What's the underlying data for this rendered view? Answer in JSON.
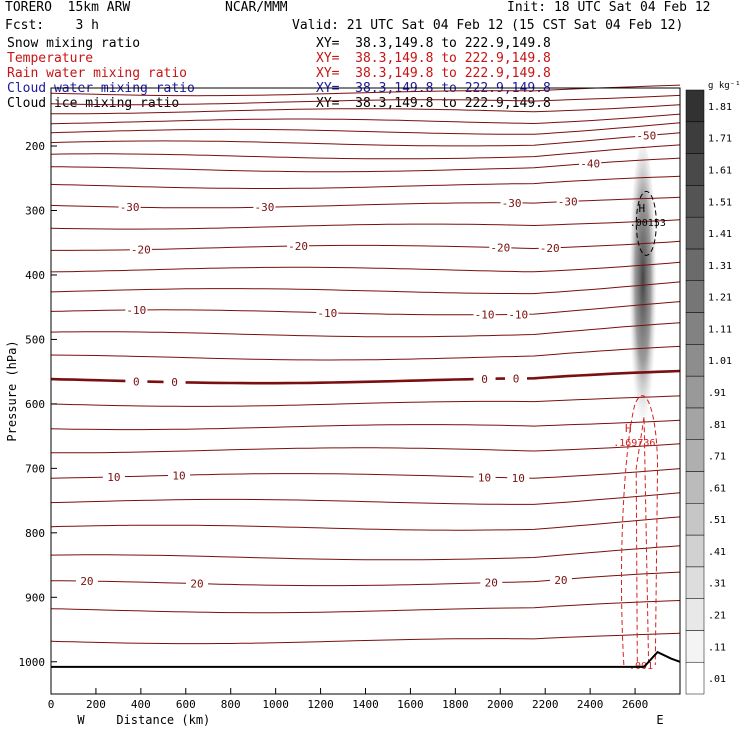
{
  "header": {
    "model": "TORERO  15km ARW",
    "center": "NCAR/MMM",
    "init": "Init: 18 UTC Sat 04 Feb 12",
    "fcst": "Fcst:    3 h",
    "valid": "Valid: 21 UTC Sat 04 Feb 12 (15 CST Sat 04 Feb 12)"
  },
  "fields": [
    {
      "name": "Snow mixing ratio",
      "xy": "XY=  38.3,149.8 to 222.9,149.8",
      "color": "#000000"
    },
    {
      "name": "Temperature",
      "xy": "XY=  38.3,149.8 to 222.9,149.8",
      "color": "#c81414"
    },
    {
      "name": "Rain water mixing ratio",
      "xy": "XY=  38.3,149.8 to 222.9,149.8",
      "color": "#c81414"
    },
    {
      "name": "Cloud water mixing ratio",
      "xy": "XY=  38.3,149.8 to 222.9,149.8",
      "color": "#1a1aa0"
    },
    {
      "name": "Cloud ice mixing ratio",
      "xy": "XY=  38.3,149.8 to 222.9,149.8",
      "color": "#000000"
    }
  ],
  "chart_data": {
    "type": "contour-cross-section",
    "xlabel": "Distance (km)",
    "ylabel": "Pressure (hPa)",
    "xlim": [
      0,
      2800
    ],
    "ylim": [
      1050,
      110
    ],
    "x_ticks": [
      0,
      200,
      400,
      600,
      800,
      1000,
      1200,
      1400,
      1600,
      1800,
      2000,
      2200,
      2400,
      2600
    ],
    "y_ticks": [
      200,
      300,
      400,
      500,
      600,
      700,
      800,
      900,
      1000
    ],
    "x_end_labels": {
      "left": "W",
      "right": "E"
    },
    "temperature_contours": [
      {
        "level": -50,
        "labels": [
          2650
        ]
      },
      {
        "level": -40,
        "labels": [
          2400
        ]
      },
      {
        "level": -30,
        "labels": [
          350,
          950,
          2050,
          2300
        ]
      },
      {
        "level": -20,
        "labels": [
          400,
          1100,
          2000,
          2220
        ]
      },
      {
        "level": -10,
        "labels": [
          380,
          1230,
          1930,
          2080
        ]
      },
      {
        "level": 0,
        "labels": [
          380,
          550,
          1930,
          2070
        ]
      },
      {
        "level": 10,
        "labels": [
          280,
          570,
          1930,
          2080
        ]
      },
      {
        "level": 20,
        "labels": [
          160,
          650,
          1960,
          2270
        ]
      }
    ],
    "maxima": [
      {
        "field": "Snow mixing ratio",
        "marker": "H",
        "x": 2630,
        "p": 315,
        "value": ".00153"
      },
      {
        "field": "Rain water mixing ratio",
        "marker": "H",
        "x": 2570,
        "p": 656,
        "value": ".169736"
      },
      {
        "field": "Rain water mixing ratio",
        "marker": "",
        "x": 2600,
        "p": 1002,
        "value": ".001"
      }
    ],
    "shading_colorbar": {
      "units": "g kg⁻¹",
      "labels": [
        ".01",
        ".11",
        ".21",
        ".31",
        ".41",
        ".51",
        ".61",
        ".71",
        ".81",
        ".91",
        "1.01",
        "1.11",
        "1.21",
        "1.31",
        "1.41",
        "1.51",
        "1.61",
        "1.71",
        "1.81"
      ]
    }
  }
}
